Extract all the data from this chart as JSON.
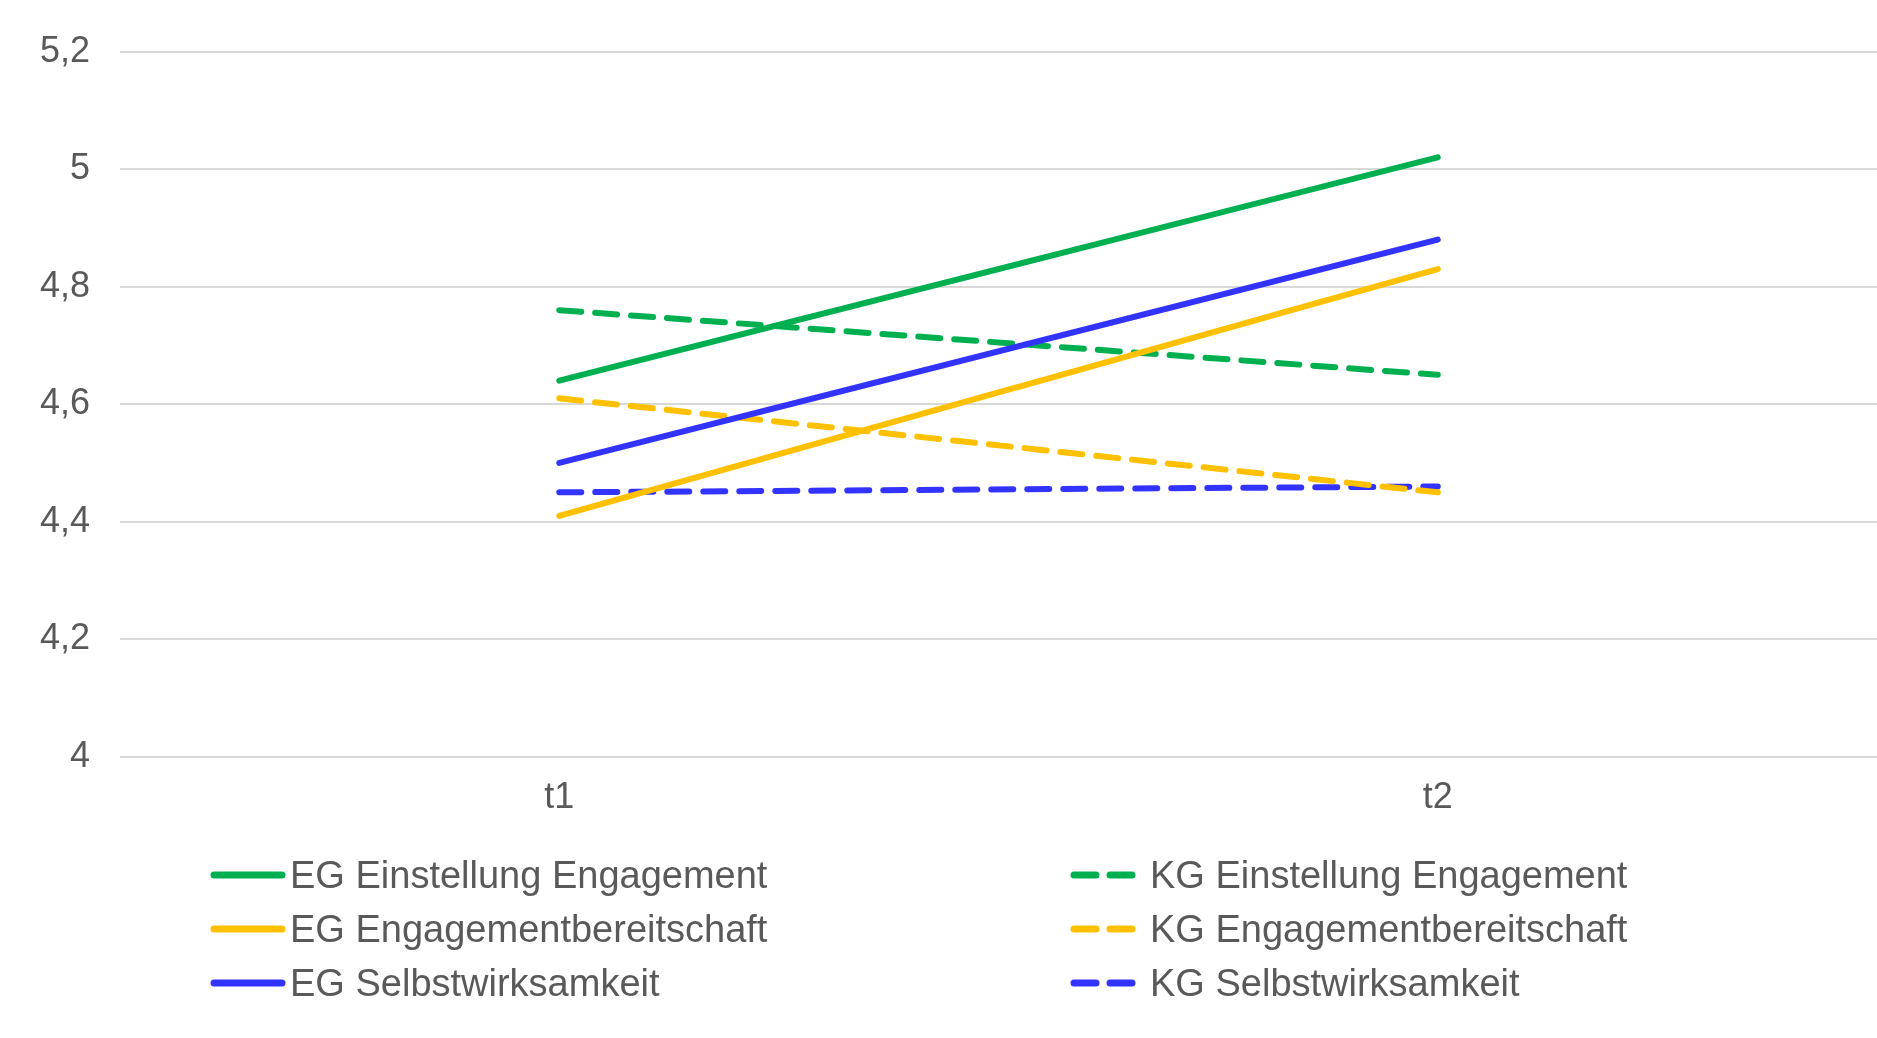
{
  "chart_data": {
    "type": "line",
    "categories": [
      "t1",
      "t2"
    ],
    "series": [
      {
        "name": "EG Einstellung Engagement",
        "color": "#00b050",
        "values": [
          4.64,
          5.02
        ],
        "line_style": "solid"
      },
      {
        "name": "EG Engagementbereitschaft",
        "color": "#ffc000",
        "values": [
          4.41,
          4.83
        ],
        "line_style": "solid"
      },
      {
        "name": "EG Selbstwirksamkeit",
        "color": "#3333ff",
        "values": [
          4.5,
          4.88
        ],
        "line_style": "solid"
      },
      {
        "name": "KG Einstellung Engagement",
        "color": "#00b050",
        "values": [
          4.76,
          4.65
        ],
        "line_style": "dashed"
      },
      {
        "name": "KG Engagementbereitschaft",
        "color": "#ffc000",
        "values": [
          4.61,
          4.45
        ],
        "line_style": "dashed"
      },
      {
        "name": "KG Selbstwirksamkeit",
        "color": "#3333ff",
        "values": [
          4.45,
          4.46
        ],
        "line_style": "dashed"
      }
    ],
    "ylim": [
      4,
      5.2
    ],
    "yticks": [
      4,
      {
        "value": 4.2,
        "label": "4,2"
      },
      {
        "value": 4.4,
        "label": "4,4"
      },
      {
        "value": 4.6,
        "label": "4,6"
      },
      {
        "value": 4.8,
        "label": "4,8"
      },
      5,
      {
        "value": 5.2,
        "label": "5,2"
      }
    ],
    "grid": "y",
    "legend": "bottom",
    "marker": "none"
  }
}
